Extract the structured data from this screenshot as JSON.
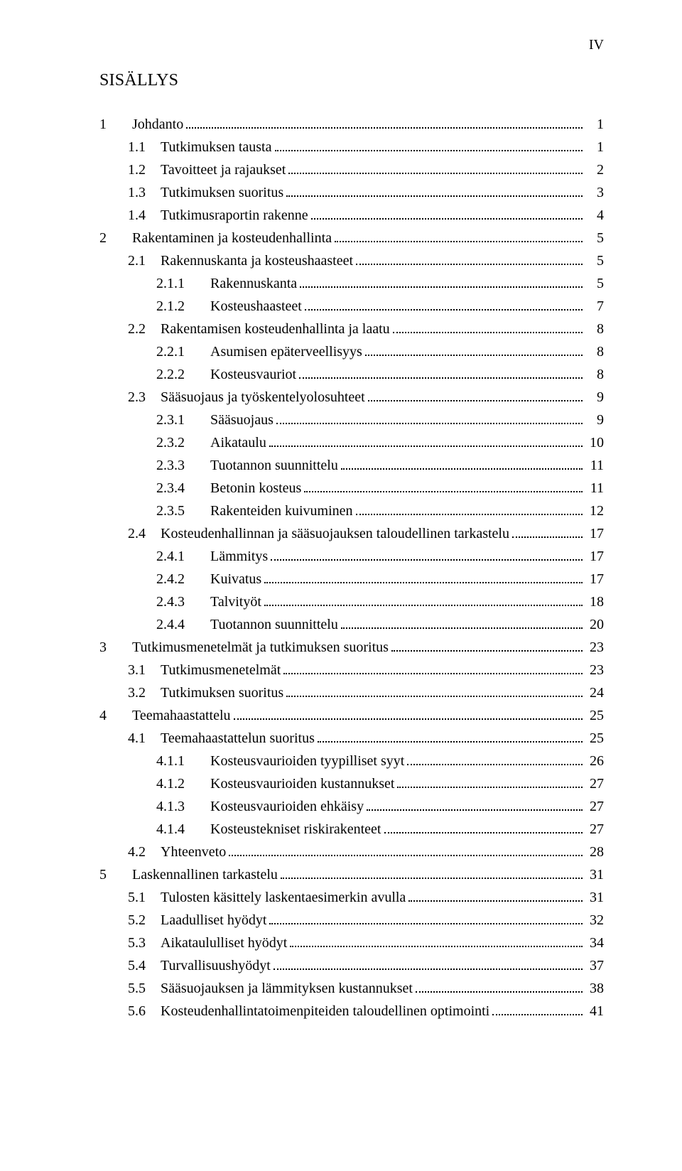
{
  "pageNumber": "IV",
  "tocTitle": "SISÄLLYS",
  "colors": {
    "background": "#ffffff",
    "text": "#000000",
    "dots": "#000000"
  },
  "typography": {
    "font_family": "Times New Roman",
    "title_fontsize_pt": 18,
    "body_fontsize_pt": 15,
    "line_height": 1.6
  },
  "toc": [
    {
      "level": 0,
      "num": "1",
      "text": "Johdanto",
      "page": "1"
    },
    {
      "level": 1,
      "num": "1.1",
      "text": "Tutkimuksen tausta",
      "page": "1"
    },
    {
      "level": 1,
      "num": "1.2",
      "text": "Tavoitteet ja rajaukset",
      "page": "2"
    },
    {
      "level": 1,
      "num": "1.3",
      "text": "Tutkimuksen suoritus",
      "page": "3"
    },
    {
      "level": 1,
      "num": "1.4",
      "text": "Tutkimusraportin rakenne",
      "page": "4"
    },
    {
      "level": 0,
      "num": "2",
      "text": "Rakentaminen ja kosteudenhallinta",
      "page": "5"
    },
    {
      "level": 1,
      "num": "2.1",
      "text": "Rakennuskanta ja kosteushaasteet",
      "page": "5"
    },
    {
      "level": 2,
      "num": "2.1.1",
      "text": "Rakennuskanta",
      "page": "5"
    },
    {
      "level": 2,
      "num": "2.1.2",
      "text": "Kosteushaasteet",
      "page": "7"
    },
    {
      "level": 1,
      "num": "2.2",
      "text": "Rakentamisen kosteudenhallinta ja laatu",
      "page": "8"
    },
    {
      "level": 2,
      "num": "2.2.1",
      "text": "Asumisen epäterveellisyys",
      "page": "8"
    },
    {
      "level": 2,
      "num": "2.2.2",
      "text": "Kosteusvauriot",
      "page": "8"
    },
    {
      "level": 1,
      "num": "2.3",
      "text": "Sääsuojaus ja työskentelyolosuhteet",
      "page": "9"
    },
    {
      "level": 2,
      "num": "2.3.1",
      "text": "Sääsuojaus",
      "page": "9"
    },
    {
      "level": 2,
      "num": "2.3.2",
      "text": "Aikataulu",
      "page": "10"
    },
    {
      "level": 2,
      "num": "2.3.3",
      "text": "Tuotannon suunnittelu",
      "page": "11"
    },
    {
      "level": 2,
      "num": "2.3.4",
      "text": "Betonin kosteus",
      "page": "11"
    },
    {
      "level": 2,
      "num": "2.3.5",
      "text": "Rakenteiden kuivuminen",
      "page": "12"
    },
    {
      "level": 1,
      "num": "2.4",
      "text": "Kosteudenhallinnan ja sääsuojauksen taloudellinen tarkastelu",
      "page": "17"
    },
    {
      "level": 2,
      "num": "2.4.1",
      "text": "Lämmitys",
      "page": "17"
    },
    {
      "level": 2,
      "num": "2.4.2",
      "text": "Kuivatus",
      "page": "17"
    },
    {
      "level": 2,
      "num": "2.4.3",
      "text": "Talvityöt",
      "page": "18"
    },
    {
      "level": 2,
      "num": "2.4.4",
      "text": "Tuotannon suunnittelu",
      "page": "20"
    },
    {
      "level": 0,
      "num": "3",
      "text": "Tutkimusmenetelmät ja tutkimuksen suoritus",
      "page": "23"
    },
    {
      "level": 1,
      "num": "3.1",
      "text": "Tutkimusmenetelmät",
      "page": "23"
    },
    {
      "level": 1,
      "num": "3.2",
      "text": "Tutkimuksen suoritus",
      "page": "24"
    },
    {
      "level": 0,
      "num": "4",
      "text": "Teemahaastattelu",
      "page": "25"
    },
    {
      "level": 1,
      "num": "4.1",
      "text": "Teemahaastattelun suoritus",
      "page": "25"
    },
    {
      "level": 2,
      "num": "4.1.1",
      "text": "Kosteusvaurioiden tyypilliset syyt",
      "page": "26"
    },
    {
      "level": 2,
      "num": "4.1.2",
      "text": "Kosteusvaurioiden kustannukset",
      "page": "27"
    },
    {
      "level": 2,
      "num": "4.1.3",
      "text": "Kosteusvaurioiden ehkäisy",
      "page": "27"
    },
    {
      "level": 2,
      "num": "4.1.4",
      "text": "Kosteustekniset riskirakenteet",
      "page": "27"
    },
    {
      "level": 1,
      "num": "4.2",
      "text": "Yhteenveto",
      "page": "28"
    },
    {
      "level": 0,
      "num": "5",
      "text": "Laskennallinen tarkastelu",
      "page": "31"
    },
    {
      "level": 1,
      "num": "5.1",
      "text": "Tulosten käsittely laskentaesimerkin avulla",
      "page": "31"
    },
    {
      "level": 1,
      "num": "5.2",
      "text": "Laadulliset hyödyt",
      "page": "32"
    },
    {
      "level": 1,
      "num": "5.3",
      "text": "Aikataululliset hyödyt",
      "page": "34"
    },
    {
      "level": 1,
      "num": "5.4",
      "text": "Turvallisuushyödyt",
      "page": "37"
    },
    {
      "level": 1,
      "num": "5.5",
      "text": "Sääsuojauksen ja lämmityksen kustannukset",
      "page": "38"
    },
    {
      "level": 1,
      "num": "5.6",
      "text": "Kosteudenhallintatoimenpiteiden taloudellinen optimointi",
      "page": "41"
    }
  ]
}
